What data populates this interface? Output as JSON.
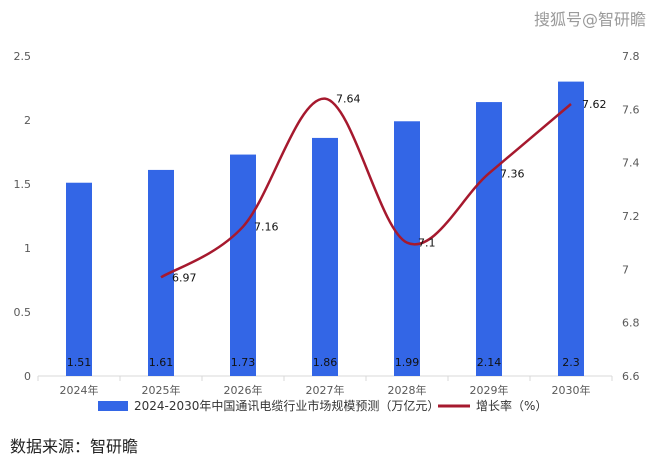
{
  "watermark": "搜狐号@智研瞻",
  "source_note": "数据来源：智研瞻",
  "colors": {
    "bar": "#3366e6",
    "line": "#a6192e",
    "axis": "#d9d9d9"
  },
  "chart_data": {
    "type": "bar",
    "categories": [
      "2024年",
      "2025年",
      "2026年",
      "2027年",
      "2028年",
      "2029年",
      "2030年"
    ],
    "series": [
      {
        "name": "2024-2030年中国通讯电缆行业市场规模预测（万亿元）",
        "type": "bar",
        "axis": "left",
        "values": [
          1.51,
          1.61,
          1.73,
          1.86,
          1.99,
          2.14,
          2.3
        ],
        "labels": [
          "1.51",
          "1.61",
          "1.73",
          "1.86",
          "1.99",
          "2.14",
          "2.3"
        ]
      },
      {
        "name": "增长率（%）",
        "type": "line",
        "axis": "right",
        "smooth": true,
        "values": [
          null,
          6.97,
          7.16,
          7.64,
          7.1,
          7.36,
          7.62
        ],
        "labels": [
          "",
          "6.97",
          "7.16",
          "7.64",
          "7.1",
          "7.36",
          "7.62"
        ]
      }
    ],
    "y_left": {
      "lim": [
        0,
        2.5
      ],
      "ticks": [
        "0",
        "0.5",
        "1",
        "1.5",
        "2",
        "2.5"
      ]
    },
    "y_right": {
      "lim": [
        6.6,
        7.8
      ],
      "ticks": [
        "6.6",
        "6.8",
        "7",
        "7.2",
        "7.4",
        "7.6",
        "7.8"
      ]
    },
    "grid": false,
    "legend": "bottom"
  }
}
